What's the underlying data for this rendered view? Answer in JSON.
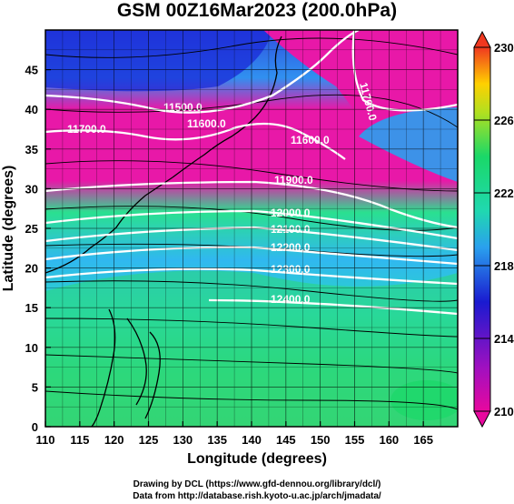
{
  "title": "GSM 00Z16Mar2023 (200.0hPa)",
  "map": {
    "xlabel": "Longitude (degrees)",
    "ylabel": "Latitude (degrees)",
    "xlim": [
      110,
      170
    ],
    "ylim": [
      0,
      50
    ],
    "x_ticks": [
      "110",
      "115",
      "120",
      "125",
      "130",
      "135",
      "140",
      "145",
      "150",
      "155",
      "160",
      "165"
    ],
    "y_ticks": [
      "0",
      "5",
      "10",
      "15",
      "20",
      "25",
      "30",
      "35",
      "40",
      "45"
    ],
    "grid": true,
    "contours": [
      {
        "label": "11500.0"
      },
      {
        "label": "11600.0"
      },
      {
        "label": "11700.0"
      },
      {
        "label": "11600.0"
      },
      {
        "label": "11700.0"
      },
      {
        "label": "11900.0"
      },
      {
        "label": "12000.0"
      },
      {
        "label": "12100.0"
      },
      {
        "label": "12200.0"
      },
      {
        "label": "12300.0"
      },
      {
        "label": "12400.0"
      }
    ]
  },
  "colorbar": {
    "ticks": [
      "210",
      "214",
      "218",
      "222",
      "226",
      "230"
    ],
    "range": [
      210,
      230
    ],
    "colors": [
      "#e8089e",
      "#1a1ad0",
      "#2aa0ee",
      "#1ad868",
      "#b0e020",
      "#ffd000",
      "#f03820"
    ]
  },
  "credits": {
    "line1": "Drawing by DCL (https://www.gfd-dennou.org/library/dcl/)",
    "line2": "Data from http://database.rish.kyoto-u.ac.jp/arch/jmadata/"
  }
}
